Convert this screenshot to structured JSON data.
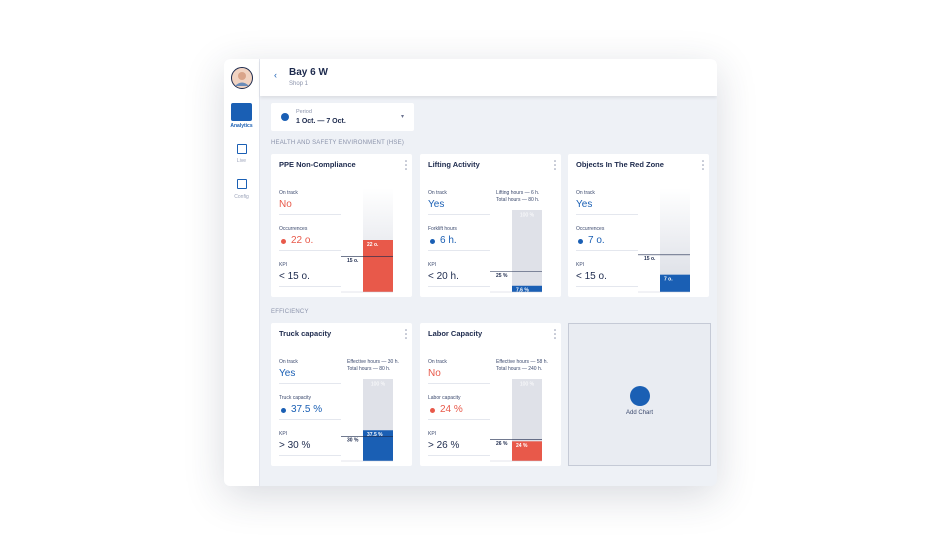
{
  "header": {
    "title": "Bay 6 W",
    "subtitle": "Shop 1"
  },
  "sidebar": {
    "items": [
      {
        "label": "Analytics"
      },
      {
        "label": "Live"
      },
      {
        "label": "Config"
      }
    ]
  },
  "period": {
    "label": "Period",
    "value": "1 Oct. — 7 Oct."
  },
  "sections": [
    {
      "title": "HEALTH AND SAFETY ENVIRONMENT (HSE)",
      "cards": [
        {
          "title": "PPE Non-Compliance",
          "fields": [
            {
              "label": "On track",
              "value": "No",
              "status": "bad"
            },
            {
              "label": "Occurrences",
              "value": "22 o.",
              "status": "bad"
            },
            {
              "label": "KPI",
              "value": "< 15 o."
            }
          ],
          "gauge": {
            "ylim": [
              0,
              44
            ],
            "value": 22,
            "value_label": "22 o.",
            "threshold": 15,
            "threshold_label": "15 o.",
            "status": "bad"
          }
        },
        {
          "title": "Lifting Activity",
          "fields": [
            {
              "label": "On track",
              "value": "Yes",
              "status": "good"
            },
            {
              "label": "Forklift hours",
              "value": "6 h.",
              "status": "good"
            },
            {
              "label": "KPI",
              "value": "< 20 h."
            }
          ],
          "notes": [
            "Lifting hours — 6 h.",
            "Total hours — 80 h."
          ],
          "gauge": {
            "ylim": [
              0,
              100
            ],
            "top_label": "100 %",
            "value": 7.6,
            "value_label": "7.6 %",
            "threshold": 25,
            "threshold_label": "25 %",
            "status": "good"
          }
        },
        {
          "title": "Objects In The Red Zone",
          "fields": [
            {
              "label": "On track",
              "value": "Yes",
              "status": "good"
            },
            {
              "label": "Occurrences",
              "value": "7 o.",
              "status": "good"
            },
            {
              "label": "KPI",
              "value": "< 15 o."
            }
          ],
          "gauge": {
            "ylim": [
              0,
              42
            ],
            "value": 7,
            "value_label": "7 o.",
            "threshold": 15,
            "threshold_label": "15 o.",
            "status": "good"
          }
        }
      ]
    },
    {
      "title": "EFFICIENCY",
      "add_chart": "Add Chart",
      "cards": [
        {
          "title": "Truck capacity",
          "fields": [
            {
              "label": "On track",
              "value": "Yes",
              "status": "good"
            },
            {
              "label": "Truck capacity",
              "value": "37.5 %",
              "status": "good"
            },
            {
              "label": "KPI",
              "value": "> 30 %"
            }
          ],
          "notes": [
            "Effective hours — 30 h.",
            "Total hours — 80 h."
          ],
          "gauge": {
            "ylim": [
              0,
              100
            ],
            "top_label": "100 %",
            "value": 37.5,
            "value_label": "37.5 %",
            "threshold": 30,
            "threshold_label": "30 %",
            "status": "good"
          }
        },
        {
          "title": "Labor Capacity",
          "fields": [
            {
              "label": "On track",
              "value": "No",
              "status": "bad"
            },
            {
              "label": "Labor capacity",
              "value": "24 %",
              "status": "bad"
            },
            {
              "label": "KPI",
              "value": "> 26 %"
            }
          ],
          "notes": [
            "Effective hours — 58 h.",
            "Total hours — 240 h."
          ],
          "gauge": {
            "ylim": [
              0,
              100
            ],
            "top_label": "100 %",
            "value": 24,
            "value_label": "24 %",
            "threshold": 26,
            "threshold_label": "26 %",
            "status": "bad"
          }
        }
      ]
    }
  ]
}
